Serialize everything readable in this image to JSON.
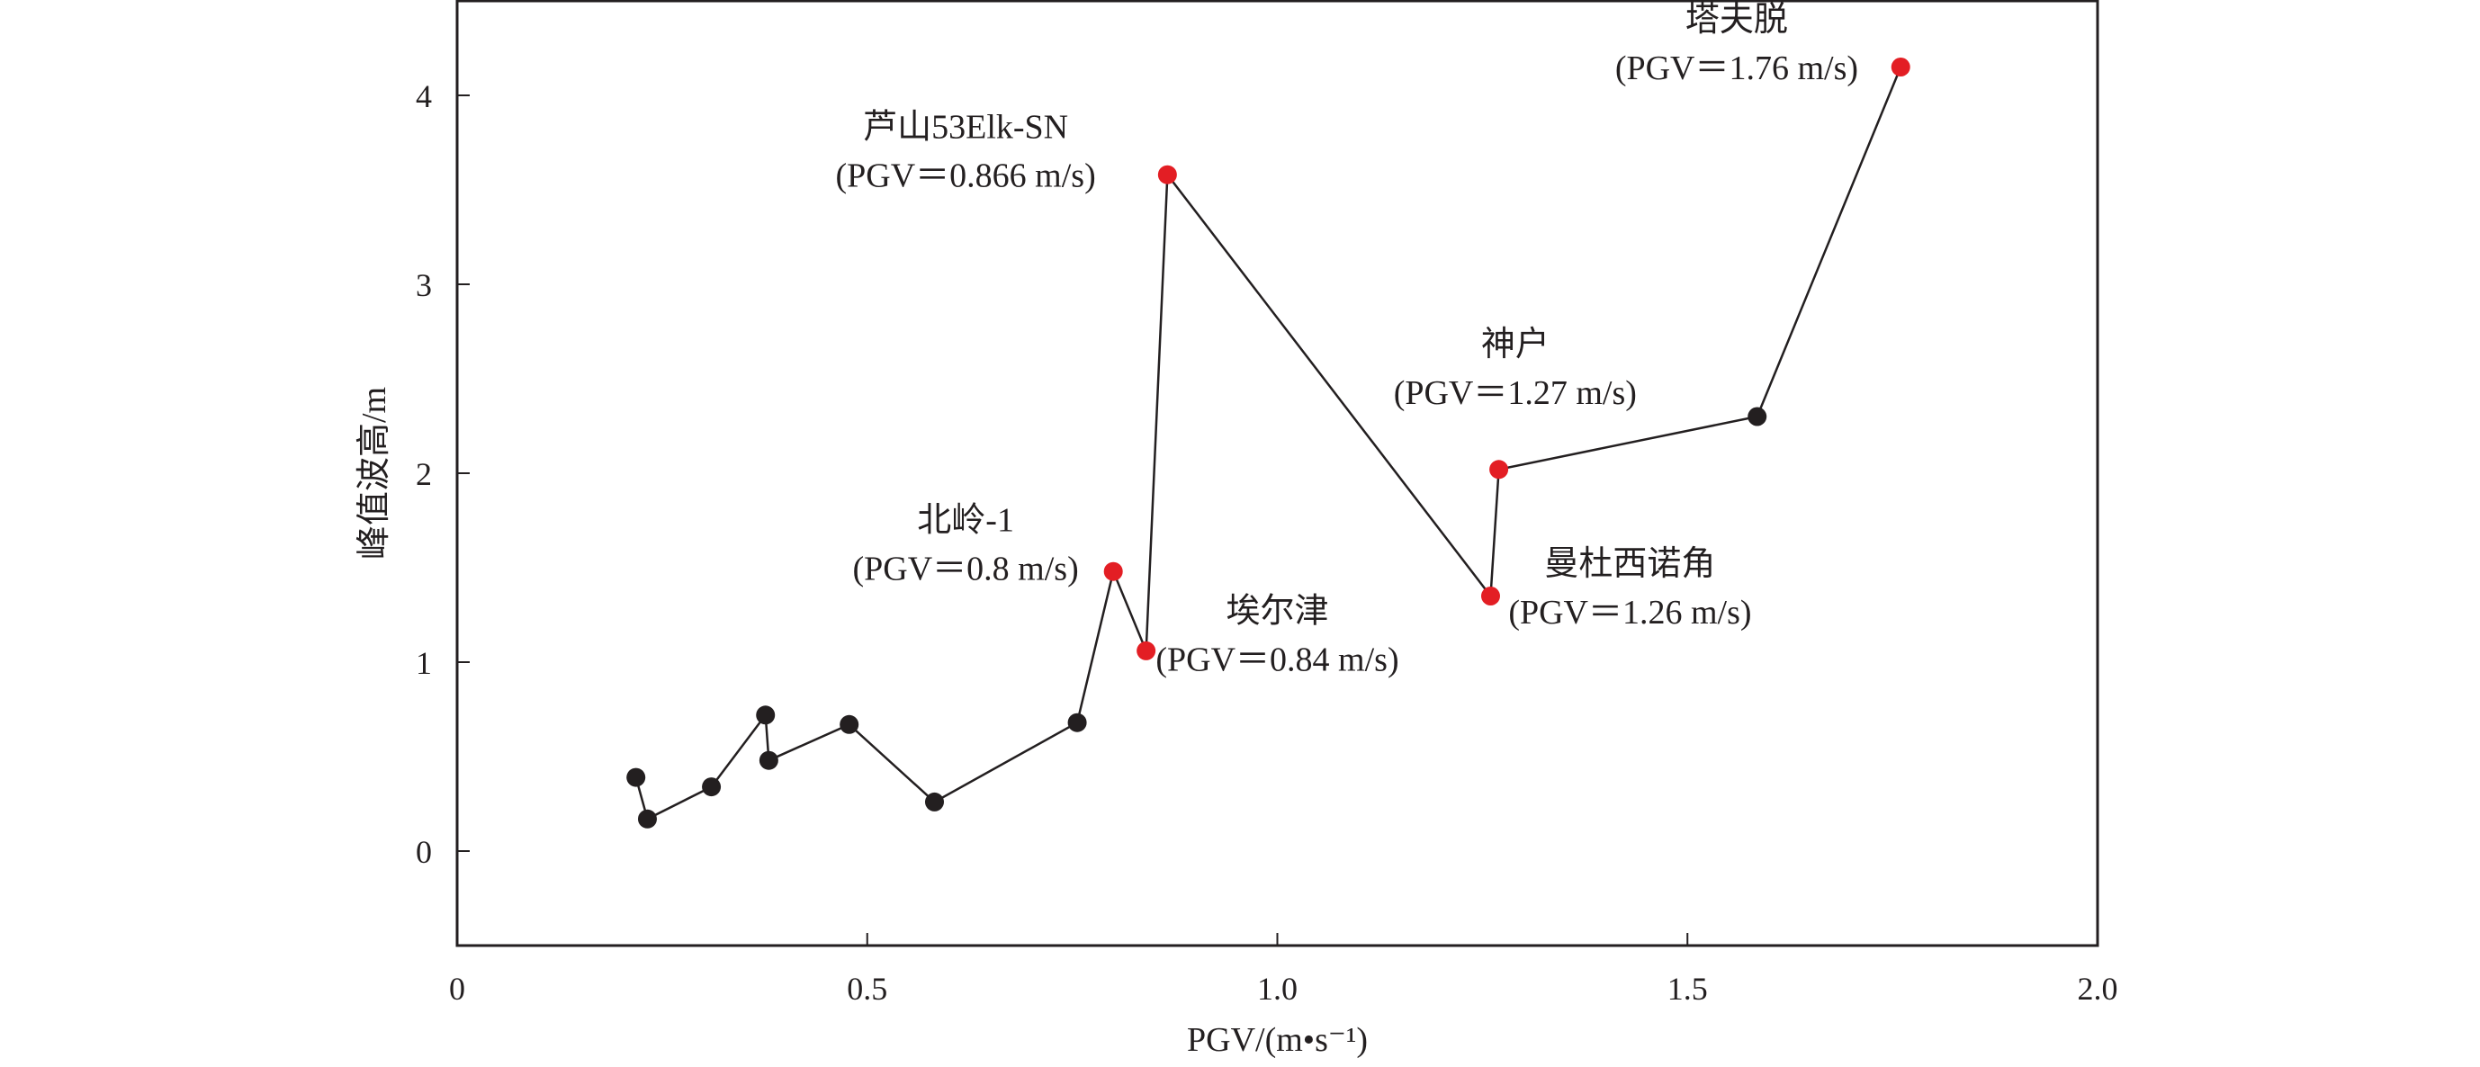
{
  "chart_data": {
    "type": "line",
    "title": "",
    "xlabel": "PGV/(m•s⁻¹)",
    "ylabel": "峰值波高/m",
    "xlim": [
      0,
      2.0
    ],
    "ylim": [
      -0.5,
      4.5
    ],
    "xticks": [
      0,
      0.5,
      1.0,
      1.5,
      2.0
    ],
    "xtick_labels": [
      "0",
      "0.5",
      "1.0",
      "1.5",
      "2.0"
    ],
    "yticks": [
      0,
      1,
      2,
      3,
      4
    ],
    "ytick_labels": [
      "0",
      "1",
      "2",
      "3",
      "4"
    ],
    "grid": false,
    "line_color": "#231f20",
    "colors": {
      "normal": "#231f20",
      "highlight": "#e31e24"
    },
    "points": [
      {
        "x": 0.218,
        "y": 0.39,
        "highlight": false
      },
      {
        "x": 0.232,
        "y": 0.17,
        "highlight": false
      },
      {
        "x": 0.31,
        "y": 0.34,
        "highlight": false
      },
      {
        "x": 0.376,
        "y": 0.72,
        "highlight": false
      },
      {
        "x": 0.38,
        "y": 0.48,
        "highlight": false
      },
      {
        "x": 0.478,
        "y": 0.67,
        "highlight": false
      },
      {
        "x": 0.582,
        "y": 0.26,
        "highlight": false
      },
      {
        "x": 0.756,
        "y": 0.68,
        "highlight": false
      },
      {
        "x": 0.8,
        "y": 1.48,
        "highlight": true
      },
      {
        "x": 0.84,
        "y": 1.06,
        "highlight": true
      },
      {
        "x": 0.866,
        "y": 3.58,
        "highlight": true
      },
      {
        "x": 1.26,
        "y": 1.35,
        "highlight": true
      },
      {
        "x": 1.27,
        "y": 2.02,
        "highlight": true
      },
      {
        "x": 1.585,
        "y": 2.3,
        "highlight": false
      },
      {
        "x": 1.76,
        "y": 4.15,
        "highlight": true
      }
    ],
    "annotations": [
      {
        "name": "北岭-1",
        "pgv": "(PGV＝0.8 m/s)",
        "anchor_x": 0.62,
        "anchor_y": 1.55,
        "align": "middle"
      },
      {
        "name": "埃尔津",
        "pgv": "(PGV＝0.84 m/s)",
        "anchor_x": 1.0,
        "anchor_y": 1.07,
        "align": "middle"
      },
      {
        "name": "芦山53Elk-SN",
        "pgv": "(PGV＝0.866 m/s)",
        "anchor_x": 0.62,
        "anchor_y": 3.63,
        "align": "middle"
      },
      {
        "name": "曼杜西诺角",
        "pgv": "(PGV＝1.26 m/s)",
        "anchor_x": 1.43,
        "anchor_y": 1.32,
        "align": "middle"
      },
      {
        "name": "神户",
        "pgv": "(PGV＝1.27 m/s)",
        "anchor_x": 1.29,
        "anchor_y": 2.48,
        "align": "middle"
      },
      {
        "name": "塔夫脱",
        "pgv": "(PGV＝1.76 m/s)",
        "anchor_x": 1.56,
        "anchor_y": 4.2,
        "align": "middle"
      }
    ]
  }
}
